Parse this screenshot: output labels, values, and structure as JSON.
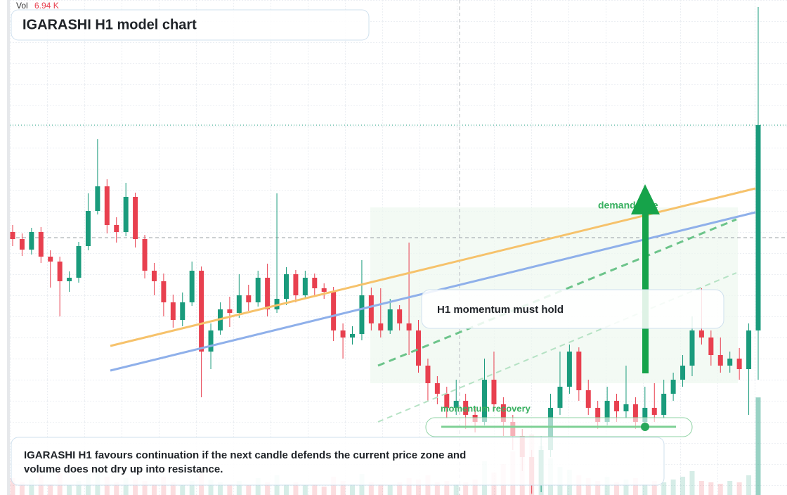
{
  "chart_data": {
    "type": "candlestick",
    "title": "IGARASHI H1 model chart",
    "ylim": [
      0,
      70.4
    ],
    "up_color": "#1a9b7c",
    "down_color": "#e8404f",
    "open": [
      37.4,
      36.4,
      34.9,
      37.4,
      33.9,
      33.2,
      30.4,
      30.9,
      35.4,
      40.4,
      43.9,
      38.4,
      37.4,
      42.4,
      36.4,
      31.9,
      30.4,
      27.4,
      24.9,
      27.4,
      31.9,
      20.4,
      23.4,
      26.4,
      25.9,
      28.4,
      27.4,
      30.9,
      26.4,
      27.9,
      31.4,
      28.4,
      30.9,
      29.4,
      28.9,
      23.4,
      22.4,
      22.9,
      28.4,
      24.4,
      23.4,
      26.4,
      24.4,
      23.4,
      18.4,
      15.9,
      14.4,
      12.4,
      13.4,
      11.4,
      10.4,
      16.4,
      12.9,
      10.4,
      8.4,
      5.4,
      1.4,
      6.4,
      12.4,
      15.4,
      20.4,
      14.9,
      12.4,
      10.4,
      13.4,
      11.9,
      12.9,
      10.4,
      12.4,
      11.4,
      14.4,
      16.4,
      18.4,
      23.4,
      22.4,
      19.9,
      18.4,
      19.4,
      17.9,
      23.4
    ],
    "high": [
      38.4,
      37.2,
      38.0,
      38.1,
      34.8,
      33.9,
      31.8,
      36.0,
      42.9,
      50.6,
      44.9,
      39.5,
      44.4,
      43.0,
      37.0,
      33.0,
      31.5,
      28.5,
      28.8,
      33.2,
      32.5,
      24.4,
      27.4,
      28.2,
      31.4,
      29.9,
      31.9,
      32.9,
      42.9,
      32.4,
      32.0,
      31.9,
      31.5,
      30.1,
      29.6,
      24.4,
      24.0,
      33.4,
      29.5,
      29.4,
      27.9,
      27.0,
      35.9,
      24.9,
      19.4,
      16.9,
      15.4,
      16.4,
      14.4,
      12.4,
      19.4,
      20.4,
      13.9,
      11.4,
      9.4,
      6.4,
      8.4,
      14.4,
      20.4,
      21.4,
      21.0,
      16.4,
      13.4,
      15.4,
      14.4,
      18.4,
      13.9,
      15.4,
      15.9,
      16.4,
      17.4,
      19.9,
      25.4,
      29.4,
      23.4,
      22.4,
      20.4,
      20.9,
      24.4,
      69.4
    ],
    "low": [
      35.4,
      34.0,
      34.2,
      33.0,
      29.5,
      25.4,
      28.9,
      30.2,
      34.8,
      39.9,
      37.2,
      35.9,
      36.8,
      35.2,
      30.8,
      28.4,
      25.4,
      23.8,
      24.0,
      26.9,
      13.9,
      17.9,
      22.8,
      23.9,
      25.2,
      26.2,
      26.8,
      25.4,
      25.9,
      27.0,
      27.4,
      27.9,
      28.4,
      27.9,
      21.9,
      19.4,
      21.4,
      22.0,
      23.4,
      22.4,
      22.9,
      23.4,
      19.9,
      17.4,
      13.4,
      12.9,
      10.9,
      11.4,
      9.4,
      8.9,
      9.9,
      11.9,
      8.4,
      6.4,
      3.4,
      0.2,
      0.4,
      5.4,
      11.4,
      14.4,
      13.4,
      11.4,
      9.4,
      9.9,
      10.4,
      10.9,
      9.4,
      9.9,
      10.4,
      10.9,
      13.4,
      15.4,
      16.9,
      21.4,
      18.4,
      17.4,
      17.4,
      16.4,
      11.4,
      16.4
    ],
    "close": [
      36.4,
      34.9,
      37.4,
      33.9,
      33.2,
      30.4,
      30.9,
      35.4,
      40.4,
      43.9,
      38.4,
      37.4,
      42.4,
      36.4,
      31.9,
      30.4,
      27.4,
      24.9,
      27.4,
      31.9,
      20.4,
      23.4,
      26.4,
      25.9,
      28.4,
      27.4,
      30.9,
      26.4,
      27.9,
      31.4,
      28.4,
      30.9,
      29.4,
      28.9,
      23.4,
      22.4,
      22.9,
      28.4,
      24.4,
      23.4,
      26.4,
      24.4,
      23.4,
      18.4,
      15.9,
      14.4,
      12.4,
      13.4,
      11.4,
      10.4,
      16.4,
      12.9,
      10.4,
      8.4,
      5.4,
      1.4,
      6.4,
      12.4,
      15.4,
      20.4,
      14.9,
      12.4,
      10.4,
      13.4,
      11.9,
      12.9,
      10.4,
      12.4,
      11.4,
      14.4,
      16.4,
      18.4,
      23.4,
      22.4,
      19.9,
      18.4,
      19.4,
      17.9,
      23.4,
      52.6
    ],
    "volume": {
      "name": "Vol",
      "last_label": "6.94 K",
      "vlim": [
        0,
        35.2
      ],
      "values": [
        1.2,
        0.9,
        1.1,
        1.4,
        0.8,
        1.6,
        0.7,
        1.0,
        1.5,
        2.1,
        1.3,
        0.9,
        1.2,
        1.1,
        1.0,
        0.8,
        1.3,
        0.9,
        0.7,
        1.0,
        1.8,
        1.1,
        0.9,
        0.8,
        1.0,
        0.7,
        1.2,
        0.9,
        1.4,
        0.8,
        0.9,
        0.7,
        0.8,
        0.6,
        1.3,
        1.0,
        0.8,
        1.5,
        0.9,
        0.8,
        0.7,
        0.9,
        1.2,
        1.1,
        1.4,
        0.9,
        1.0,
        0.8,
        0.9,
        1.1,
        2.4,
        1.6,
        2.2,
        3.1,
        3.8,
        4.3,
        3.5,
        2.6,
        2.0,
        1.8,
        1.4,
        1.2,
        1.0,
        1.3,
        0.9,
        1.1,
        1.2,
        0.8,
        1.0,
        0.9,
        1.1,
        1.3,
        1.7,
        1.0,
        0.9,
        0.8,
        1.0,
        0.9,
        1.4,
        6.94
      ]
    },
    "annotations": {
      "zone_label": "demand side",
      "callout": "H1 momentum must hold",
      "recovery_label": "momentum recovery",
      "note": [
        "IGARASHI H1 favours continuation if the next candle defends the current price zone and",
        "volume does not dry up into resistance."
      ]
    }
  }
}
